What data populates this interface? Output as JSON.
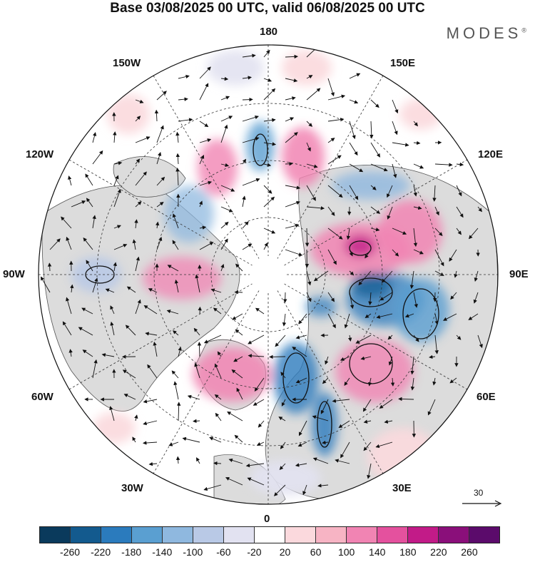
{
  "title": "Base 03/08/2025 00 UTC, valid 06/08/2025 00 UTC",
  "brand": {
    "name": "MODES",
    "mark": "®"
  },
  "longitude_labels": {
    "top": "180",
    "bottom": "0",
    "left": "90W",
    "right": "90E",
    "upper_left_1": "150W",
    "upper_left_2": "120W",
    "upper_right_1": "150E",
    "upper_right_2": "120E",
    "lower_left_1": "60W",
    "lower_left_2": "30W",
    "lower_right_1": "60E",
    "lower_right_2": "30E"
  },
  "reference_vector": {
    "value": "30",
    "icon": "arrow-right-icon"
  },
  "colorbar": {
    "colors": [
      "#0a3a5c",
      "#135a8e",
      "#2b7bbd",
      "#5a9fd1",
      "#8fb8df",
      "#b9c9e6",
      "#e2e2f1",
      "#ffffff",
      "#fbd9dd",
      "#f7b4c4",
      "#f184b3",
      "#e4519e",
      "#c21b88",
      "#8a0f7a",
      "#5b0b6b"
    ],
    "tick_labels": [
      "-260",
      "-220",
      "-180",
      "-140",
      "-100",
      "-60",
      "-20",
      "20",
      "60",
      "100",
      "140",
      "180",
      "220",
      "260"
    ]
  },
  "colors": {
    "ocean": "#ffffff",
    "land": "#dcdcdc",
    "grid": "#333333",
    "coast": "#444444"
  }
}
